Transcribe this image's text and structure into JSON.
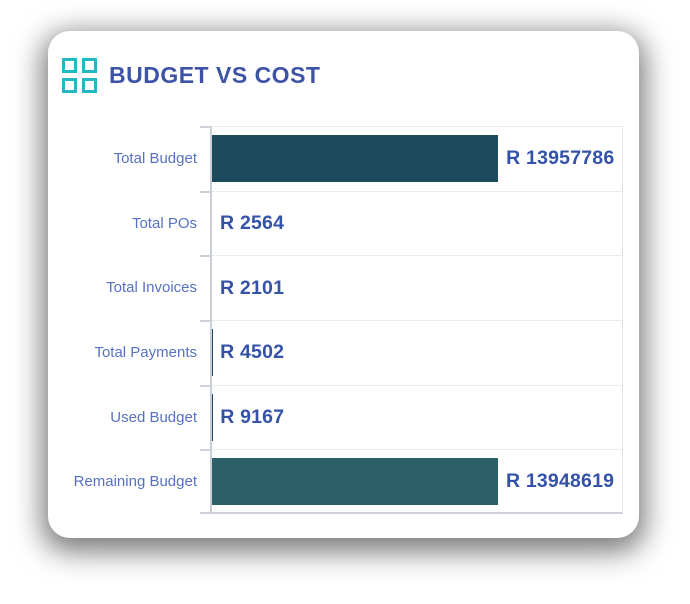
{
  "card": {
    "title": "BUDGET VS COST"
  },
  "colors": {
    "icon_teal": "#24b7c4",
    "title_text": "#3d53a6",
    "category_label": "#5671c4",
    "value_label": "#3452a8",
    "axis_line": "#cdd1d9",
    "gridline": "#d5d9e2",
    "card_background": "#ffffff",
    "bar_total_budget": "#1e4a5e",
    "bar_remaining_budget": "#2b6069"
  },
  "chart_data": {
    "type": "bar",
    "orientation": "horizontal",
    "title": "BUDGET VS COST",
    "categories": [
      "Total Budget",
      "Total POs",
      "Total Invoices",
      "Total Payments",
      "Used Budget",
      "Remaining Budget"
    ],
    "values": [
      13957786,
      2564,
      2101,
      4502,
      9167,
      13948619
    ],
    "value_labels": [
      "R 13957786",
      "R 2564",
      "R 2101",
      "R 4502",
      "R 9167",
      "R 13948619"
    ],
    "bar_colors": [
      "#1e4a5e",
      null,
      null,
      null,
      null,
      "#2b6069"
    ],
    "currency_prefix": "R",
    "xlabel": "",
    "ylabel": "",
    "xlim": [
      0,
      20000000
    ],
    "grid": "dotted horizontal row separators",
    "legend": "none"
  }
}
